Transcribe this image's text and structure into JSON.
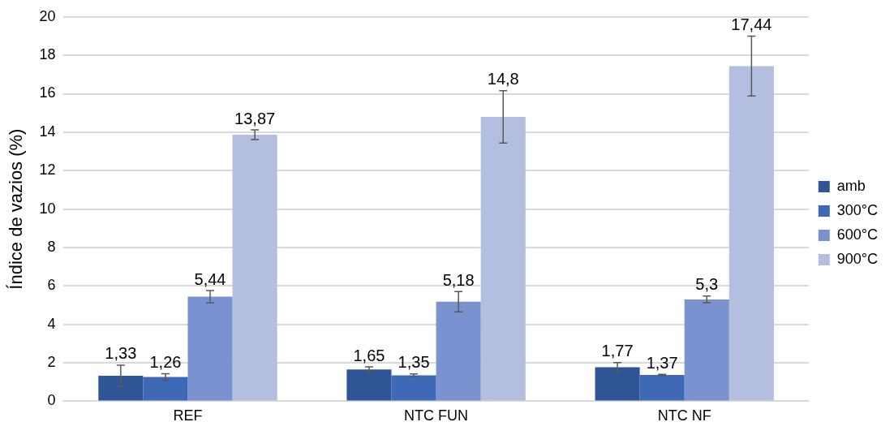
{
  "chart_data": {
    "type": "bar",
    "ylabel": "Índice de vazios (%)",
    "categories": [
      "REF",
      "NTC FUN",
      "NTC NF"
    ],
    "series": [
      {
        "name": "amb",
        "color": "#2f5597",
        "values": [
          1.33,
          1.65,
          1.77
        ],
        "errors": [
          0.55,
          0.14,
          0.24
        ],
        "value_labels": [
          "1,33",
          "1,65",
          "1,77"
        ]
      },
      {
        "name": "300°C",
        "color": "#3d69b6",
        "values": [
          1.26,
          1.35,
          1.37
        ],
        "errors": [
          0.17,
          0.07,
          0.03
        ],
        "value_labels": [
          "1,26",
          "1,35",
          "1,37"
        ]
      },
      {
        "name": "600°C",
        "color": "#7a92cf",
        "values": [
          5.44,
          5.18,
          5.3
        ],
        "errors": [
          0.32,
          0.53,
          0.17
        ],
        "value_labels": [
          "5,44",
          "5,18",
          "5,3"
        ]
      },
      {
        "name": "900°C",
        "color": "#b4bfe0",
        "values": [
          13.87,
          14.8,
          17.44
        ],
        "errors": [
          0.25,
          1.36,
          1.56
        ],
        "value_labels": [
          "13,87",
          "14,8",
          "17,44"
        ]
      }
    ],
    "ylim": [
      0,
      20
    ],
    "yticks": [
      0,
      2,
      4,
      6,
      8,
      10,
      12,
      14,
      16,
      18,
      20
    ],
    "grid": "y",
    "legend": "right"
  }
}
